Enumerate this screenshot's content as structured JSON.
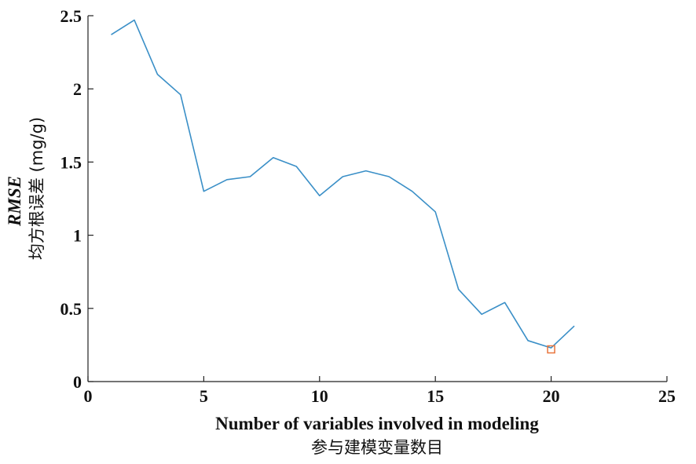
{
  "chart_data": {
    "type": "line",
    "xlabel": "Number of variables involved in modeling",
    "xlabel_cn": "参与建模变量数目",
    "ylabel_italic": "RMSE",
    "ylabel_cn": "均方根误差 (mg/g)",
    "xlim": [
      0,
      25
    ],
    "ylim": [
      0,
      2.5
    ],
    "xticks": [
      0,
      5,
      10,
      15,
      20,
      25
    ],
    "yticks": [
      0,
      0.5,
      1,
      1.5,
      2,
      2.5
    ],
    "xtick_labels": [
      "0",
      "5",
      "10",
      "15",
      "20",
      "25"
    ],
    "ytick_labels": [
      "0",
      "0.5",
      "1",
      "1.5",
      "2",
      "2.5"
    ],
    "grid": false,
    "series": [
      {
        "color": "#3a8fc7",
        "x": [
          1,
          2,
          3,
          4,
          5,
          6,
          7,
          8,
          9,
          10,
          11,
          12,
          13,
          14,
          15,
          16,
          17,
          18,
          19,
          20,
          21
        ],
        "y": [
          2.37,
          2.47,
          2.1,
          1.96,
          1.3,
          1.38,
          1.4,
          1.53,
          1.47,
          1.27,
          1.4,
          1.44,
          1.4,
          1.3,
          1.16,
          0.63,
          0.46,
          0.54,
          0.28,
          0.23,
          0.38
        ]
      }
    ],
    "highlight": {
      "x": 20,
      "y": 0.22,
      "color": "#e8743b",
      "marker": "square"
    }
  }
}
